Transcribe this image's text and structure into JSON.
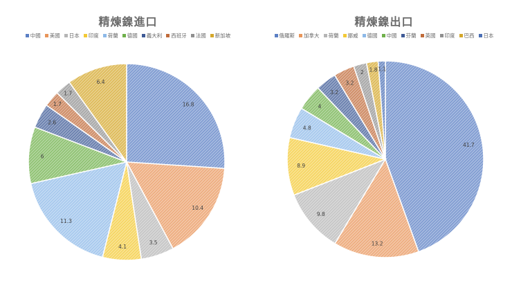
{
  "chart_data": [
    {
      "type": "pie",
      "title": "精煉鎳進口",
      "categories": [
        "中國",
        "美國",
        "日本",
        "印度",
        "荷蘭",
        "德國",
        "義大利",
        "西班牙",
        "法國",
        "新加坡"
      ],
      "values": [
        16.8,
        10.4,
        3.5,
        4.1,
        11.3,
        6,
        2.6,
        1.7,
        1.7,
        6.4
      ],
      "colors": [
        "#5b7fc4",
        "#e8955a",
        "#b5b5b5",
        "#f3c935",
        "#8db9e8",
        "#6fb04a",
        "#3e5a96",
        "#c06b3a",
        "#8f8f8f",
        "#d4a72a"
      ],
      "legend_position": "top",
      "data_labels": true
    },
    {
      "type": "pie",
      "title": "精煉鎳出口",
      "categories": [
        "俄羅斯",
        "加拿大",
        "荷蘭",
        "挪威",
        "德國",
        "中國",
        "芬蘭",
        "英國",
        "印度",
        "巴西",
        "日本"
      ],
      "values": [
        41.7,
        13.2,
        9.8,
        8.9,
        4.8,
        4,
        3.2,
        3.2,
        2,
        1.8,
        1.1
      ],
      "colors": [
        "#5b7fc4",
        "#e8955a",
        "#b5b5b5",
        "#f3c935",
        "#8db9e8",
        "#6fb04a",
        "#3e5a96",
        "#c06b3a",
        "#8f8f8f",
        "#d4a72a",
        "#4a6fb5"
      ],
      "legend_position": "top",
      "data_labels": true
    }
  ]
}
